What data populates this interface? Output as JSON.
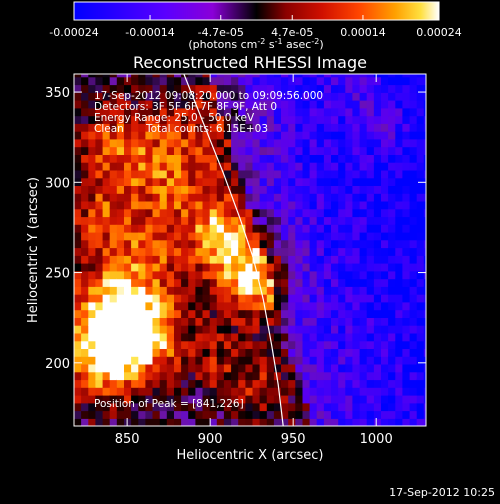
{
  "chart_data": {
    "type": "heatmap",
    "title": "Reconstructed RHESSI Image",
    "xlabel": "Heliocentric X (arcsec)",
    "ylabel": "Heliocentric Y (arcsec)",
    "xlim": [
      818,
      1030
    ],
    "ylim": [
      165,
      360
    ],
    "x_ticks": [
      850,
      900,
      950,
      1000
    ],
    "x_tick_labels": [
      "850",
      "900",
      "950",
      "1000"
    ],
    "y_ticks": [
      200,
      250,
      300,
      350
    ],
    "y_tick_labels": [
      "200",
      "250",
      "300",
      "350"
    ],
    "colorbar": {
      "min": -0.00024,
      "max": 0.00024,
      "tick_values": [
        -0.00024,
        -0.00014,
        -4.7e-05,
        4.7e-05,
        0.00014,
        0.00024
      ],
      "tick_labels": [
        "-0.00024",
        "-0.00014",
        "-4.7e-05",
        "4.7e-05",
        "0.00014",
        "0.00024"
      ],
      "label": "(photons cm",
      "label_exp1": "-2",
      "label_mid": " s",
      "label_exp2": "-1",
      "label_mid2": " asec",
      "label_exp3": "-2",
      "label_end": ")"
    },
    "annotations": {
      "time_range": "17-Sep-2012 09:08:20.000 to 09:09:56.000",
      "detectors": "Detectors: 3F 5F 6F 7F 8F 9F, Att 0",
      "energy_range": "Energy Range: 25.0 - 50.0 keV",
      "algorithm": "Clean",
      "total_counts": "Total counts: 6.15E+03",
      "peak_position": "Position of Peak = [841,226]"
    },
    "peak": {
      "x": 841,
      "y": 226
    },
    "limb_curve": [
      [
        882,
        365
      ],
      [
        895,
        335
      ],
      [
        908,
        305
      ],
      [
        918,
        280
      ],
      [
        926,
        258
      ],
      [
        932,
        235
      ],
      [
        937,
        210
      ],
      [
        941,
        188
      ],
      [
        944,
        165
      ]
    ],
    "footer_date": "17-Sep-2012 10:25",
    "grid": false
  }
}
